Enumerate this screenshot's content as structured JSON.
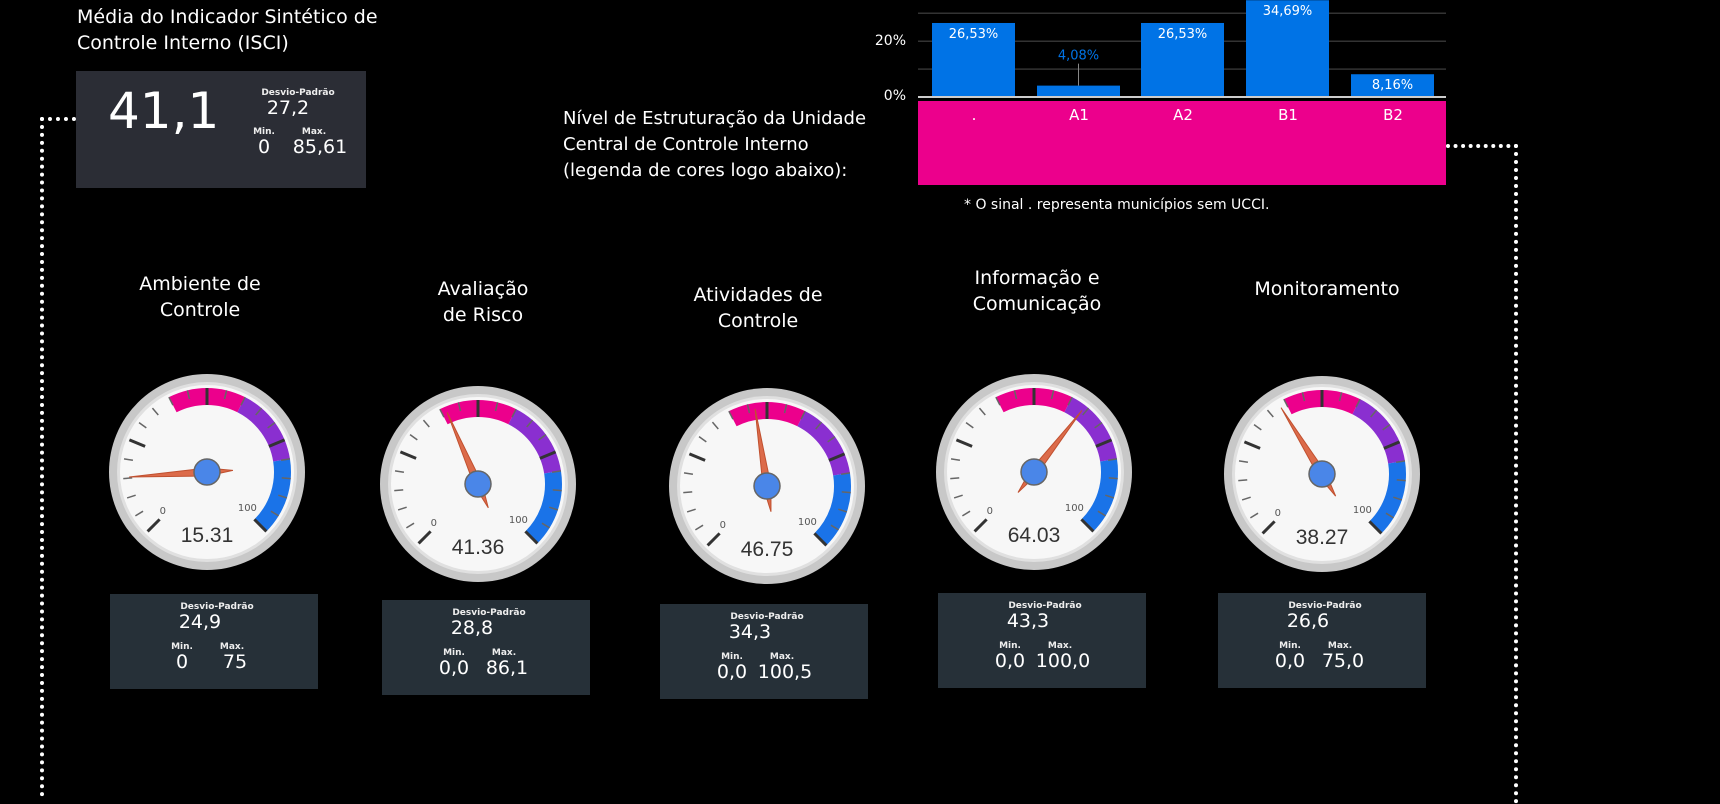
{
  "isci": {
    "title": "Média do Indicador Sintético de Controle Interno (ISCI)",
    "title_line1": "Média do Indicador Sintético de",
    "title_line2": "Controle Interno (ISCI)",
    "value": "41,1",
    "std_label": "Desvio-Padrão",
    "std": "27,2",
    "min_label": "Min.",
    "min": "0",
    "max_label": "Max.",
    "max": "85,61"
  },
  "ucci": {
    "label_line1": "Nível de Estruturação da Unidade",
    "label_line2": "Central  de Controle Interno",
    "label_line3": "(legenda de cores logo abaixo):",
    "footnote": "* O sinal . representa municípios  sem UCCI.",
    "band_color": "#ec008c"
  },
  "chart_data": {
    "type": "bar",
    "categories": [
      ".",
      "A1",
      "A2",
      "B1",
      "B2"
    ],
    "values": [
      26.53,
      4.08,
      26.53,
      34.69,
      8.16
    ],
    "data_labels": [
      "26,53%",
      "4,08%",
      "26,53%",
      "34,69%",
      "8,16%"
    ],
    "y_ticks": [
      "0%",
      "20%"
    ],
    "ylim": [
      0,
      35
    ],
    "grid": true,
    "bar_color": "#0073e6"
  },
  "gauges": [
    {
      "title_line1": "Ambiente de",
      "title_line2": "Controle",
      "value": 15.31,
      "value_label": "15.31",
      "std_label": "Desvio-Padrão",
      "std": "24,9",
      "min_label": "Min.",
      "min": "0",
      "max_label": "Max.",
      "max": "75"
    },
    {
      "title_line1": "Avaliação",
      "title_line2": "de Risco",
      "value": 41.36,
      "value_label": "41.36",
      "std_label": "Desvio-Padrão",
      "std": "28,8",
      "min_label": "Min.",
      "min": "0,0",
      "max_label": "Max.",
      "max": "86,1"
    },
    {
      "title_line1": "Atividades de",
      "title_line2": "Controle",
      "value": 46.75,
      "value_label": "46.75",
      "std_label": "Desvio-Padrão",
      "std": "34,3",
      "min_label": "Min.",
      "min": "0,0",
      "max_label": "Max.",
      "max": "100,5"
    },
    {
      "title_line1": "Informação e",
      "title_line2": "Comunicação",
      "value": 64.03,
      "value_label": "64.03",
      "std_label": "Desvio-Padrão",
      "std": "43,3",
      "min_label": "Min.",
      "min": "0,0",
      "max_label": "Max.",
      "max": "100,0"
    },
    {
      "title_line1": "Monitoramento",
      "title_line2": "",
      "value": 38.27,
      "value_label": "38.27",
      "std_label": "Desvio-Padrão",
      "std": "26,6",
      "min_label": "Min.",
      "min": "0,0",
      "max_label": "Max.",
      "max": "75,0"
    }
  ],
  "gauge_scale": {
    "min": 0,
    "max": 100,
    "min_label": "0",
    "max_label": "100",
    "bands": [
      {
        "from": 40,
        "to": 60,
        "color": "#ec008c"
      },
      {
        "from": 60,
        "to": 80,
        "color": "#8a2fd0"
      },
      {
        "from": 80,
        "to": 100,
        "color": "#1a73e8"
      }
    ]
  }
}
